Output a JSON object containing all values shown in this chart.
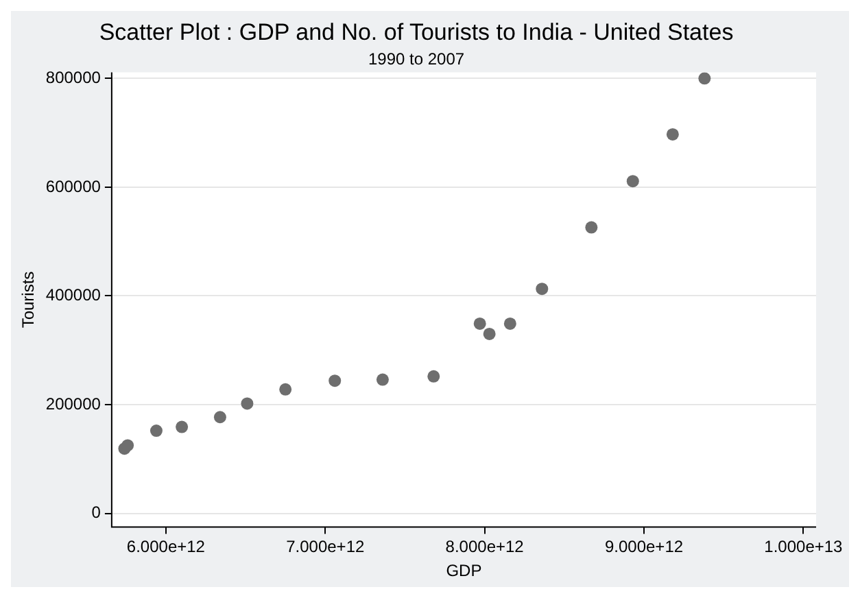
{
  "chart_data": {
    "type": "scatter",
    "title": "Scatter Plot : GDP and No. of Tourists to India - United States",
    "subtitle": "1990 to 2007",
    "xlabel": "GDP",
    "ylabel": "Tourists",
    "x": [
      5740000000000.0,
      5760000000000.0,
      5940000000000.0,
      6100000000000.0,
      6340000000000.0,
      6510000000000.0,
      6750000000000.0,
      7060000000000.0,
      7360000000000.0,
      7680000000000.0,
      7970000000000.0,
      8030000000000.0,
      8160000000000.0,
      8360000000000.0,
      8670000000000.0,
      8930000000000.0,
      9180000000000.0,
      9380000000000.0
    ],
    "series": [
      {
        "color": "#6e6e6e",
        "values": [
          119000,
          125000,
          152000,
          159000,
          177000,
          202000,
          228000,
          244000,
          246000,
          252000,
          349000,
          330000,
          349000,
          413000,
          526000,
          611000,
          697000,
          800000
        ]
      }
    ],
    "xlim": [
      5660000000000.0,
      10080000000000.0
    ],
    "ylim": [
      -25000,
      811000
    ],
    "xticks": [
      {
        "value": 6000000000000.0,
        "label": "6.000e+12"
      },
      {
        "value": 7000000000000.0,
        "label": "7.000e+12"
      },
      {
        "value": 8000000000000.0,
        "label": "8.000e+12"
      },
      {
        "value": 9000000000000.0,
        "label": "9.000e+12"
      },
      {
        "value": 10000000000000.0,
        "label": "1.000e+13"
      }
    ],
    "yticks": [
      0,
      200000,
      400000,
      600000,
      800000
    ],
    "grid": "y",
    "legend": false,
    "marker": "circle"
  }
}
